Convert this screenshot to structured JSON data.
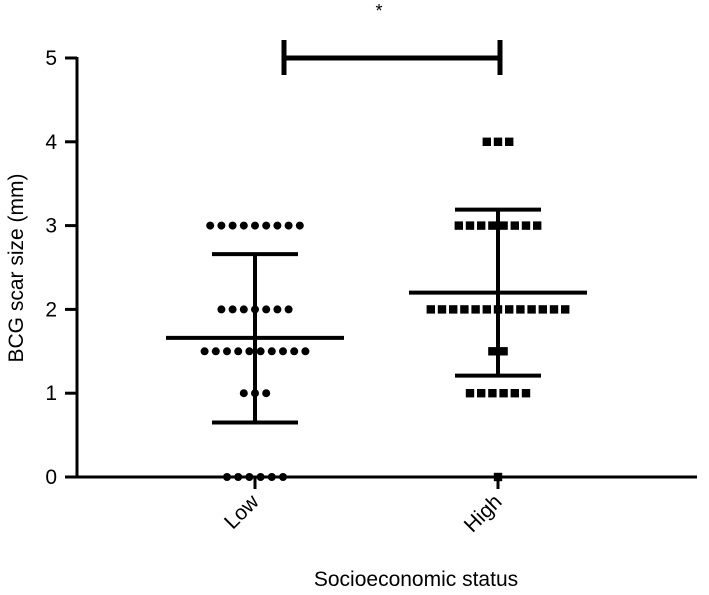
{
  "chart_data": {
    "type": "scatter",
    "title": "",
    "xlabel": "Socioeconomic status",
    "ylabel": "BCG scar size (mm)",
    "ylim": [
      0,
      5
    ],
    "yticks": [
      0,
      1,
      2,
      3,
      4,
      5
    ],
    "categories": [
      "Low",
      "High"
    ],
    "grid": false,
    "legend": "none",
    "series": [
      {
        "category": "Low",
        "marker": "circle",
        "points": [
          {
            "y": 3,
            "count": 9
          },
          {
            "y": 2,
            "count": 7
          },
          {
            "y": 1.5,
            "count": 10
          },
          {
            "y": 1,
            "count": 3
          },
          {
            "y": 0,
            "count": 6
          }
        ],
        "mean": 1.66,
        "sd_upper": 2.66,
        "sd_lower": 0.65
      },
      {
        "category": "High",
        "marker": "square",
        "points": [
          {
            "y": 4,
            "count": 3
          },
          {
            "y": 3,
            "count": 8
          },
          {
            "y": 2,
            "count": 13
          },
          {
            "y": 1.5,
            "count": 2
          },
          {
            "y": 1,
            "count": 6
          },
          {
            "y": 0,
            "count": 1
          }
        ],
        "mean": 2.2,
        "sd_upper": 3.19,
        "sd_lower": 1.21
      }
    ],
    "significance": {
      "from": "Low",
      "to": "High",
      "y": 5,
      "label": "*"
    },
    "colors": {
      "markers": "#000000",
      "axes": "#000000"
    }
  }
}
